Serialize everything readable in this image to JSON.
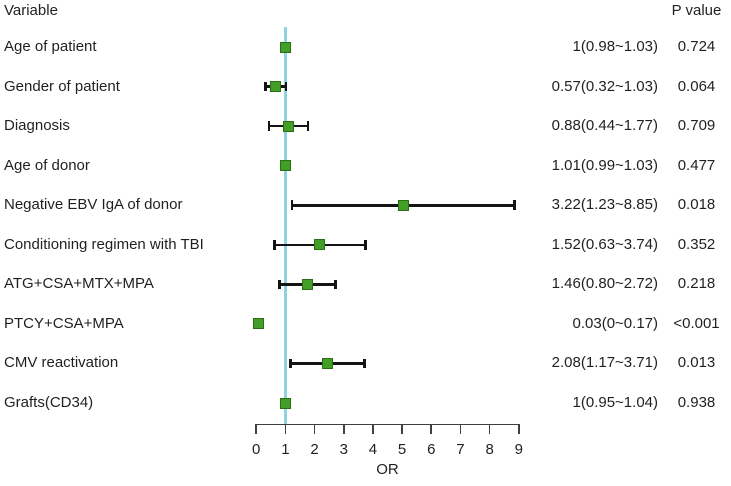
{
  "header": {
    "variable_label": "Variable",
    "p_value_label": "P value"
  },
  "chart_data": {
    "type": "forest",
    "xlabel": "OR",
    "x_ticks": [
      0,
      1,
      2,
      3,
      4,
      5,
      6,
      7,
      8,
      9
    ],
    "xlim": [
      0,
      9
    ],
    "reference_line": 1,
    "grid": false,
    "colors": {
      "marker_fill": "#429f25",
      "marker_border": "#2c6e14",
      "reference_line": "#8ed3e2",
      "error_bar": "#141414",
      "axis": "#3f3f3f",
      "text": "#231f20"
    },
    "rows": [
      {
        "label": "Age of patient",
        "or": 1,
        "ci_low": 0.98,
        "ci_high": 1.03,
        "or_text": "1(0.98~1.03)",
        "p_text": "0.724"
      },
      {
        "label": "Gender of patient",
        "or": 0.57,
        "ci_low": 0.32,
        "ci_high": 1.03,
        "or_text": "0.57(0.32~1.03)",
        "p_text": "0.064"
      },
      {
        "label": "Diagnosis",
        "or": 0.88,
        "ci_low": 0.44,
        "ci_high": 1.77,
        "or_text": "0.88(0.44~1.77)",
        "p_text": "0.709"
      },
      {
        "label": "Age of donor",
        "or": 1.01,
        "ci_low": 0.99,
        "ci_high": 1.03,
        "or_text": "1.01(0.99~1.03)",
        "p_text": "0.477"
      },
      {
        "label": "Negative EBV IgA of donor",
        "or": 3.22,
        "ci_low": 1.23,
        "ci_high": 8.85,
        "or_text": "3.22(1.23~8.85)",
        "p_text": "0.018"
      },
      {
        "label": "Conditioning regimen with TBI",
        "or": 1.52,
        "ci_low": 0.63,
        "ci_high": 3.74,
        "or_text": "1.52(0.63~3.74)",
        "p_text": "0.352"
      },
      {
        "label": "ATG+CSA+MTX+MPA",
        "or": 1.46,
        "ci_low": 0.8,
        "ci_high": 2.72,
        "or_text": "1.46(0.80~2.72)",
        "p_text": "0.218"
      },
      {
        "label": "PTCY+CSA+MPA",
        "or": 0.03,
        "ci_low": 0,
        "ci_high": 0.17,
        "or_text": "0.03(0~0.17)",
        "p_text": "<0.001"
      },
      {
        "label": "CMV reactivation",
        "or": 2.08,
        "ci_low": 1.17,
        "ci_high": 3.71,
        "or_text": "2.08(1.17~3.71)",
        "p_text": "0.013"
      },
      {
        "label": "Grafts(CD34)",
        "or": 1,
        "ci_low": 0.95,
        "ci_high": 1.04,
        "or_text": "1(0.95~1.04)",
        "p_text": "0.938"
      }
    ]
  }
}
